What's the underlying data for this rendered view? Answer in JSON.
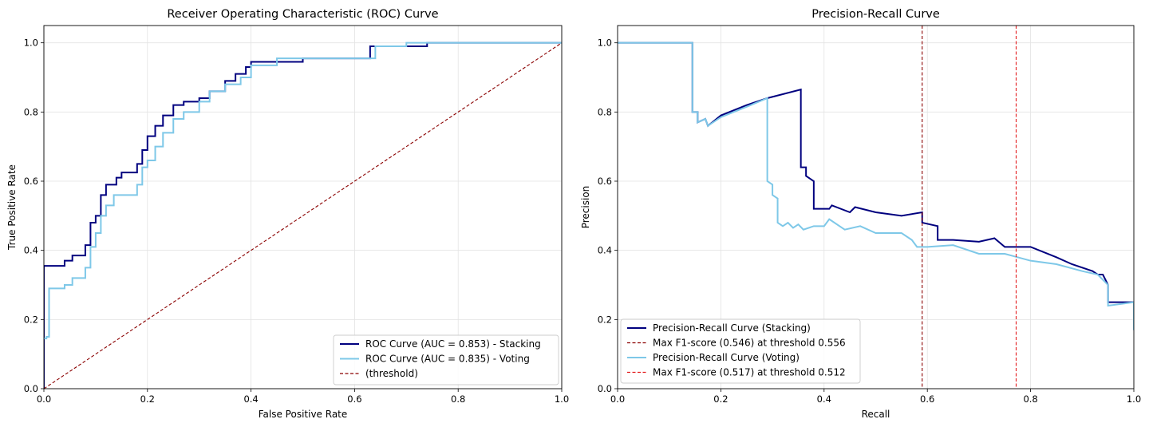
{
  "chart_data": [
    {
      "type": "line",
      "title": "Receiver Operating Characteristic (ROC) Curve",
      "xlabel": "False Positive Rate",
      "ylabel": "True Positive Rate",
      "xlim": [
        0,
        1
      ],
      "ylim": [
        0,
        1.05
      ],
      "grid": true,
      "legend_position": "lower-right",
      "xticks": [
        "0.0",
        "0.2",
        "0.4",
        "0.6",
        "0.8",
        "1.0"
      ],
      "yticks": [
        "0.0",
        "0.2",
        "0.4",
        "0.6",
        "0.8",
        "1.0"
      ],
      "series": [
        {
          "name": "ROC Curve (AUC = 0.853) - Stacking",
          "color": "#00007f",
          "style": "solid",
          "step": true,
          "points": [
            [
              0,
              0
            ],
            [
              0,
              0.355
            ],
            [
              0.04,
              0.355
            ],
            [
              0.04,
              0.37
            ],
            [
              0.055,
              0.37
            ],
            [
              0.055,
              0.385
            ],
            [
              0.08,
              0.385
            ],
            [
              0.08,
              0.415
            ],
            [
              0.09,
              0.415
            ],
            [
              0.09,
              0.48
            ],
            [
              0.1,
              0.48
            ],
            [
              0.1,
              0.5
            ],
            [
              0.11,
              0.5
            ],
            [
              0.11,
              0.56
            ],
            [
              0.12,
              0.56
            ],
            [
              0.12,
              0.59
            ],
            [
              0.14,
              0.59
            ],
            [
              0.14,
              0.61
            ],
            [
              0.15,
              0.61
            ],
            [
              0.15,
              0.625
            ],
            [
              0.18,
              0.625
            ],
            [
              0.18,
              0.65
            ],
            [
              0.19,
              0.65
            ],
            [
              0.19,
              0.69
            ],
            [
              0.2,
              0.69
            ],
            [
              0.2,
              0.73
            ],
            [
              0.215,
              0.73
            ],
            [
              0.215,
              0.76
            ],
            [
              0.23,
              0.76
            ],
            [
              0.23,
              0.79
            ],
            [
              0.25,
              0.79
            ],
            [
              0.25,
              0.82
            ],
            [
              0.27,
              0.82
            ],
            [
              0.27,
              0.83
            ],
            [
              0.3,
              0.83
            ],
            [
              0.3,
              0.84
            ],
            [
              0.32,
              0.84
            ],
            [
              0.32,
              0.86
            ],
            [
              0.35,
              0.86
            ],
            [
              0.35,
              0.89
            ],
            [
              0.37,
              0.89
            ],
            [
              0.37,
              0.91
            ],
            [
              0.39,
              0.91
            ],
            [
              0.39,
              0.93
            ],
            [
              0.4,
              0.93
            ],
            [
              0.4,
              0.945
            ],
            [
              0.5,
              0.945
            ],
            [
              0.5,
              0.955
            ],
            [
              0.63,
              0.955
            ],
            [
              0.63,
              0.99
            ],
            [
              0.74,
              0.99
            ],
            [
              0.74,
              1.0
            ],
            [
              1,
              1
            ]
          ]
        },
        {
          "name": "ROC Curve (AUC = 0.835) - Voting",
          "color": "#7ec8e8",
          "style": "solid",
          "step": true,
          "points": [
            [
              0,
              0.145
            ],
            [
              0.005,
              0.145
            ],
            [
              0.005,
              0.15
            ],
            [
              0.01,
              0.15
            ],
            [
              0.01,
              0.29
            ],
            [
              0.04,
              0.29
            ],
            [
              0.04,
              0.3
            ],
            [
              0.055,
              0.3
            ],
            [
              0.055,
              0.32
            ],
            [
              0.08,
              0.32
            ],
            [
              0.08,
              0.35
            ],
            [
              0.09,
              0.35
            ],
            [
              0.09,
              0.41
            ],
            [
              0.1,
              0.41
            ],
            [
              0.1,
              0.45
            ],
            [
              0.11,
              0.45
            ],
            [
              0.11,
              0.5
            ],
            [
              0.12,
              0.5
            ],
            [
              0.12,
              0.53
            ],
            [
              0.135,
              0.53
            ],
            [
              0.135,
              0.56
            ],
            [
              0.18,
              0.56
            ],
            [
              0.18,
              0.59
            ],
            [
              0.19,
              0.59
            ],
            [
              0.19,
              0.64
            ],
            [
              0.2,
              0.64
            ],
            [
              0.2,
              0.66
            ],
            [
              0.215,
              0.66
            ],
            [
              0.215,
              0.7
            ],
            [
              0.23,
              0.7
            ],
            [
              0.23,
              0.74
            ],
            [
              0.25,
              0.74
            ],
            [
              0.25,
              0.78
            ],
            [
              0.27,
              0.78
            ],
            [
              0.27,
              0.8
            ],
            [
              0.3,
              0.8
            ],
            [
              0.3,
              0.83
            ],
            [
              0.32,
              0.83
            ],
            [
              0.32,
              0.86
            ],
            [
              0.35,
              0.86
            ],
            [
              0.35,
              0.88
            ],
            [
              0.38,
              0.88
            ],
            [
              0.38,
              0.9
            ],
            [
              0.4,
              0.9
            ],
            [
              0.4,
              0.935
            ],
            [
              0.45,
              0.935
            ],
            [
              0.45,
              0.955
            ],
            [
              0.64,
              0.955
            ],
            [
              0.64,
              0.99
            ],
            [
              0.7,
              0.99
            ],
            [
              0.7,
              1.0
            ],
            [
              1,
              1
            ]
          ]
        },
        {
          "name": "(threshold)",
          "color": "#8b0000",
          "style": "dashed",
          "step": false,
          "points": [
            [
              0,
              0
            ],
            [
              1,
              1
            ]
          ]
        }
      ]
    },
    {
      "type": "line",
      "title": "Precision-Recall Curve",
      "xlabel": "Recall",
      "ylabel": "Precision",
      "xlim": [
        0,
        1
      ],
      "ylim": [
        0,
        1.05
      ],
      "grid": true,
      "legend_position": "lower-left",
      "xticks": [
        "0.0",
        "0.2",
        "0.4",
        "0.6",
        "0.8",
        "1.0"
      ],
      "yticks": [
        "0.0",
        "0.2",
        "0.4",
        "0.6",
        "0.8",
        "1.0"
      ],
      "series": [
        {
          "name": "Precision-Recall Curve (Stacking)",
          "color": "#00007f",
          "style": "solid",
          "step": false,
          "points": [
            [
              0,
              1.0
            ],
            [
              0.145,
              1.0
            ],
            [
              0.145,
              0.8
            ],
            [
              0.155,
              0.8
            ],
            [
              0.155,
              0.77
            ],
            [
              0.17,
              0.78
            ],
            [
              0.175,
              0.76
            ],
            [
              0.2,
              0.79
            ],
            [
              0.25,
              0.82
            ],
            [
              0.29,
              0.84
            ],
            [
              0.355,
              0.865
            ],
            [
              0.355,
              0.64
            ],
            [
              0.365,
              0.64
            ],
            [
              0.365,
              0.615
            ],
            [
              0.38,
              0.6
            ],
            [
              0.38,
              0.52
            ],
            [
              0.41,
              0.52
            ],
            [
              0.415,
              0.53
            ],
            [
              0.45,
              0.51
            ],
            [
              0.46,
              0.525
            ],
            [
              0.5,
              0.51
            ],
            [
              0.55,
              0.5
            ],
            [
              0.59,
              0.51
            ],
            [
              0.59,
              0.48
            ],
            [
              0.62,
              0.47
            ],
            [
              0.62,
              0.43
            ],
            [
              0.65,
              0.43
            ],
            [
              0.7,
              0.425
            ],
            [
              0.73,
              0.435
            ],
            [
              0.75,
              0.41
            ],
            [
              0.8,
              0.41
            ],
            [
              0.85,
              0.38
            ],
            [
              0.88,
              0.36
            ],
            [
              0.92,
              0.34
            ],
            [
              0.93,
              0.33
            ],
            [
              0.94,
              0.33
            ],
            [
              0.95,
              0.3
            ],
            [
              0.95,
              0.25
            ],
            [
              1.0,
              0.25
            ],
            [
              1.0,
              0.17
            ]
          ]
        },
        {
          "name": "Max F1-score (0.546) at threshold 0.556",
          "color": "#8b0000",
          "style": "dashed",
          "vline": 0.59
        },
        {
          "name": "Precision-Recall Curve (Voting)",
          "color": "#7ec8e8",
          "style": "solid",
          "step": false,
          "points": [
            [
              0,
              1.0
            ],
            [
              0.145,
              1.0
            ],
            [
              0.145,
              0.8
            ],
            [
              0.155,
              0.8
            ],
            [
              0.155,
              0.77
            ],
            [
              0.17,
              0.78
            ],
            [
              0.175,
              0.76
            ],
            [
              0.2,
              0.785
            ],
            [
              0.25,
              0.815
            ],
            [
              0.29,
              0.84
            ],
            [
              0.29,
              0.6
            ],
            [
              0.3,
              0.59
            ],
            [
              0.3,
              0.56
            ],
            [
              0.31,
              0.55
            ],
            [
              0.31,
              0.48
            ],
            [
              0.32,
              0.47
            ],
            [
              0.33,
              0.48
            ],
            [
              0.34,
              0.465
            ],
            [
              0.35,
              0.475
            ],
            [
              0.36,
              0.46
            ],
            [
              0.38,
              0.47
            ],
            [
              0.4,
              0.47
            ],
            [
              0.41,
              0.49
            ],
            [
              0.44,
              0.46
            ],
            [
              0.47,
              0.47
            ],
            [
              0.5,
              0.45
            ],
            [
              0.55,
              0.45
            ],
            [
              0.57,
              0.43
            ],
            [
              0.58,
              0.41
            ],
            [
              0.6,
              0.41
            ],
            [
              0.65,
              0.415
            ],
            [
              0.7,
              0.39
            ],
            [
              0.75,
              0.39
            ],
            [
              0.8,
              0.37
            ],
            [
              0.85,
              0.36
            ],
            [
              0.9,
              0.34
            ],
            [
              0.93,
              0.33
            ],
            [
              0.95,
              0.3
            ],
            [
              0.95,
              0.24
            ],
            [
              1.0,
              0.25
            ],
            [
              1.0,
              0.17
            ]
          ]
        },
        {
          "name": "Max F1-score (0.517) at threshold 0.512",
          "color": "#e31a1c",
          "style": "dashed",
          "vline": 0.772
        }
      ]
    }
  ]
}
